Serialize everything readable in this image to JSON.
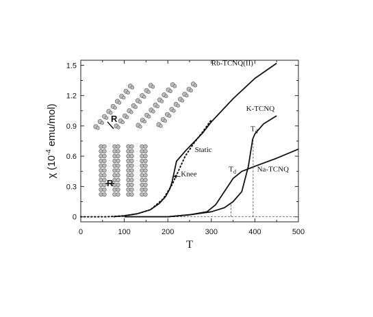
{
  "chart_data": {
    "type": "line",
    "xlabel": "T",
    "ylabel": "χ (10",
    "ylabel_sup": "-4",
    "ylabel_unit": " emu/mol)",
    "xlim": [
      0,
      500
    ],
    "ylim": [
      -0.05,
      1.55
    ],
    "xticks": [
      "0",
      "100",
      "200",
      "300",
      "400",
      "500"
    ],
    "yticks": [
      "0",
      "0.3",
      "0.6",
      "0.9",
      "1.2",
      "1.5"
    ],
    "grid": false,
    "series": [
      {
        "name": "Rb-TCNQ(II)",
        "style": "solid",
        "x": [
          75,
          100,
          130,
          160,
          180,
          195,
          205,
          210,
          215,
          220,
          240,
          260,
          280,
          300,
          350,
          400,
          450
        ],
        "y": [
          0,
          0.01,
          0.03,
          0.07,
          0.13,
          0.2,
          0.28,
          0.35,
          0.45,
          0.55,
          0.65,
          0.74,
          0.83,
          0.94,
          1.17,
          1.37,
          1.52
        ]
      },
      {
        "name": "Static",
        "style": "dotted",
        "x": [
          0,
          60,
          100,
          130,
          160,
          190,
          210,
          225,
          240,
          260,
          280,
          300
        ],
        "y": [
          0,
          0,
          0.01,
          0.03,
          0.07,
          0.18,
          0.32,
          0.46,
          0.6,
          0.73,
          0.84,
          0.96
        ]
      },
      {
        "name": "K-TCNQ",
        "style": "solid",
        "x": [
          100,
          200,
          250,
          300,
          330,
          350,
          370,
          385,
          395,
          400,
          420,
          450
        ],
        "y": [
          0,
          0,
          0.02,
          0.05,
          0.09,
          0.15,
          0.25,
          0.5,
          0.77,
          0.82,
          0.92,
          1.0
        ]
      },
      {
        "name": "Na-TCNQ",
        "style": "solid",
        "x": [
          100,
          200,
          250,
          290,
          310,
          330,
          350,
          370,
          400,
          450,
          500
        ],
        "y": [
          0,
          0,
          0.02,
          0.05,
          0.12,
          0.25,
          0.38,
          0.45,
          0.5,
          0.58,
          0.67
        ]
      }
    ],
    "annotations": [
      {
        "text": "Rb-TCNQ(II)",
        "x": 300,
        "y": 1.5
      },
      {
        "text": "K-TCNQ",
        "x": 380,
        "y": 1.05
      },
      {
        "text": "Na-TCNQ",
        "x": 405,
        "y": 0.45
      },
      {
        "text": "Static",
        "x": 262,
        "y": 0.64
      },
      {
        "text": "Knee",
        "x": 230,
        "y": 0.4
      },
      {
        "text": "T",
        "sub": "d",
        "x": 390,
        "y": 0.85
      },
      {
        "text": "T",
        "sub": "d",
        "x": 340,
        "y": 0.45
      }
    ],
    "transition_temperatures": [
      345,
      396
    ],
    "inset_labels": [
      "R",
      "R"
    ]
  }
}
